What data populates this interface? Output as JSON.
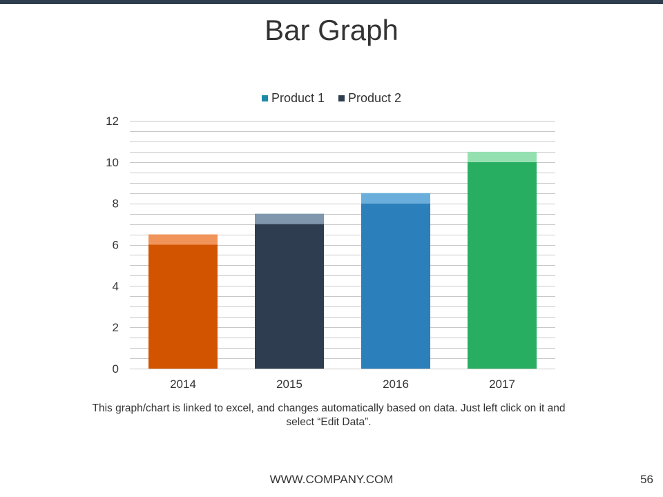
{
  "slide": {
    "title": "Bar Graph",
    "caption": "This graph/chart is linked to excel, and changes automatically based on data. Just left click on it and select “Edit Data”.",
    "footer": "WWW.COMPANY.COM",
    "page_number": "56",
    "top_bar_color": "#2f3e4e"
  },
  "legend": [
    {
      "label": "Product 1",
      "color": "#1a8aa8"
    },
    {
      "label": "Product 2",
      "color": "#2e3e50"
    }
  ],
  "chart_data": {
    "type": "bar",
    "stacked": true,
    "categories": [
      "2014",
      "2015",
      "2016",
      "2017"
    ],
    "series": [
      {
        "name": "Product 1",
        "values": [
          6,
          7,
          8,
          10
        ]
      },
      {
        "name": "Product 2",
        "values": [
          0.5,
          0.5,
          0.5,
          0.5
        ]
      }
    ],
    "bar_colors": [
      {
        "base": "#d35400",
        "top": "#f0945a"
      },
      {
        "base": "#2e3e50",
        "top": "#7f96ad"
      },
      {
        "base": "#2b7fbb",
        "top": "#6aafdb"
      },
      {
        "base": "#27ae60",
        "top": "#95e0b0"
      }
    ],
    "ylim": [
      0,
      12
    ],
    "yticks": [
      0,
      2,
      4,
      6,
      8,
      10,
      12
    ],
    "minor_grid_step": 0.5,
    "grid": true,
    "legend_position": "top"
  }
}
